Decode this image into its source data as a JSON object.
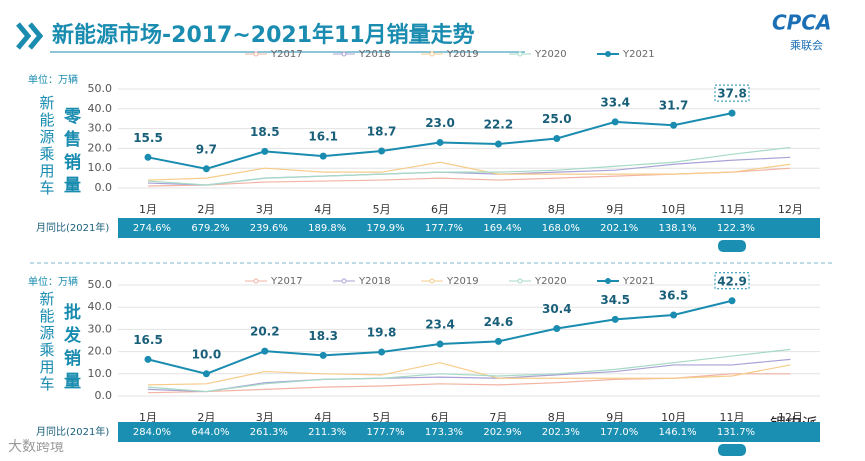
{
  "header": {
    "title": "新能源市场-2017~2021年11月销量走势",
    "logo": "CPCA",
    "logo_sub": "乘联会"
  },
  "footer": {
    "left": "大数跨境",
    "right": "锂电派"
  },
  "chart_data": [
    {
      "type": "line",
      "unit_label": "单位：万辆",
      "side_label": "新能源乘用车",
      "chart_label": "零售销量",
      "categories": [
        "1月",
        "2月",
        "3月",
        "4月",
        "5月",
        "6月",
        "7月",
        "8月",
        "9月",
        "10月",
        "11月",
        "12月"
      ],
      "ylim": [
        0,
        50
      ],
      "yticks": [
        {
          "value": 0,
          "label": "0.0"
        },
        {
          "value": 10,
          "label": "10.0"
        },
        {
          "value": 20,
          "label": "20.0"
        },
        {
          "value": 30,
          "label": "30.0"
        },
        {
          "value": 40,
          "label": "40.0"
        },
        {
          "value": 50,
          "label": "50.0"
        }
      ],
      "grid": true,
      "series": [
        {
          "name": "Y2017",
          "color": "#f2b3a3",
          "values": [
            1,
            1.5,
            3,
            3.5,
            4,
            5,
            4,
            5,
            6,
            7,
            8,
            10
          ]
        },
        {
          "name": "Y2018",
          "color": "#a8a2d6",
          "values": [
            2.5,
            1.5,
            5,
            6,
            7,
            8,
            7,
            8,
            9,
            12,
            14,
            15.5
          ]
        },
        {
          "name": "Y2019",
          "color": "#f6cc8a",
          "values": [
            4,
            5,
            10,
            8,
            8,
            13,
            7,
            7,
            7,
            7,
            8,
            12
          ]
        },
        {
          "name": "Y2020",
          "color": "#a6dac6",
          "values": [
            3.5,
            1.5,
            5,
            6,
            7,
            8,
            8,
            9,
            11,
            13,
            17,
            20.5
          ]
        },
        {
          "name": "Y2021",
          "color": "#1a8cb0",
          "values": [
            15.5,
            9.7,
            18.5,
            16.1,
            18.7,
            23.0,
            22.2,
            25.0,
            33.4,
            31.7,
            37.8,
            null
          ],
          "value_labels": [
            "15.5",
            "9.7",
            "18.5",
            "16.1",
            "18.7",
            "23.0",
            "22.2",
            "25.0",
            "33.4",
            "31.7",
            "37.8",
            null
          ]
        }
      ],
      "yoy_label": "月同比(2021年)",
      "yoy": [
        274.6,
        679.2,
        239.6,
        189.8,
        179.9,
        177.7,
        169.4,
        168.0,
        202.1,
        138.1,
        122.3,
        null
      ],
      "yoy_labels": [
        "274.6%",
        "679.2%",
        "239.6%",
        "189.8%",
        "179.9%",
        "177.7%",
        "169.4%",
        "168.0%",
        "202.1%",
        "138.1%",
        "122.3%",
        null
      ]
    },
    {
      "type": "line",
      "unit_label": "单位：万辆",
      "side_label": "新能源乘用车",
      "chart_label": "批发销量",
      "categories": [
        "1月",
        "2月",
        "3月",
        "4月",
        "5月",
        "6月",
        "7月",
        "8月",
        "9月",
        "10月",
        "11月",
        "12月"
      ],
      "ylim": [
        0,
        50
      ],
      "yticks": [
        {
          "value": 0,
          "label": "0.0"
        },
        {
          "value": 10,
          "label": "10.0"
        },
        {
          "value": 20,
          "label": "20.0"
        },
        {
          "value": 30,
          "label": "30.0"
        },
        {
          "value": 40,
          "label": "40.0"
        },
        {
          "value": 50,
          "label": "50.0"
        }
      ],
      "grid": true,
      "series": [
        {
          "name": "Y2017",
          "color": "#f2b3a3",
          "values": [
            1.5,
            2,
            3,
            4,
            4.5,
            5.5,
            5,
            6,
            7.5,
            8,
            10,
            10
          ]
        },
        {
          "name": "Y2018",
          "color": "#a8a2d6",
          "values": [
            3,
            2,
            6,
            7.5,
            8,
            8.5,
            8,
            9.5,
            11,
            14,
            14,
            16.5
          ]
        },
        {
          "name": "Y2019",
          "color": "#f6cc8a",
          "values": [
            5,
            5.5,
            11,
            10,
            9.5,
            15,
            8,
            8,
            8,
            8,
            9,
            14
          ]
        },
        {
          "name": "Y2020",
          "color": "#a6dac6",
          "values": [
            4,
            2,
            5.5,
            7.5,
            8,
            10,
            9,
            10,
            12,
            15,
            18,
            21
          ]
        },
        {
          "name": "Y2021",
          "color": "#1a8cb0",
          "values": [
            16.5,
            10.0,
            20.2,
            18.3,
            19.8,
            23.4,
            24.6,
            30.4,
            34.5,
            36.5,
            42.9,
            null
          ],
          "value_labels": [
            "16.5",
            "10.0",
            "20.2",
            "18.3",
            "19.8",
            "23.4",
            "24.6",
            "30.4",
            "34.5",
            "36.5",
            "42.9",
            null
          ]
        }
      ],
      "yoy_label": "月同比(2021年)",
      "yoy": [
        284.0,
        644.0,
        261.3,
        211.3,
        177.7,
        173.3,
        202.9,
        202.3,
        177.0,
        146.1,
        131.7,
        null
      ],
      "yoy_labels": [
        "284.0%",
        "644.0%",
        "261.3%",
        "211.3%",
        "177.7%",
        "173.3%",
        "202.9%",
        "202.3%",
        "177.0%",
        "146.1%",
        "131.7%",
        null
      ]
    }
  ]
}
